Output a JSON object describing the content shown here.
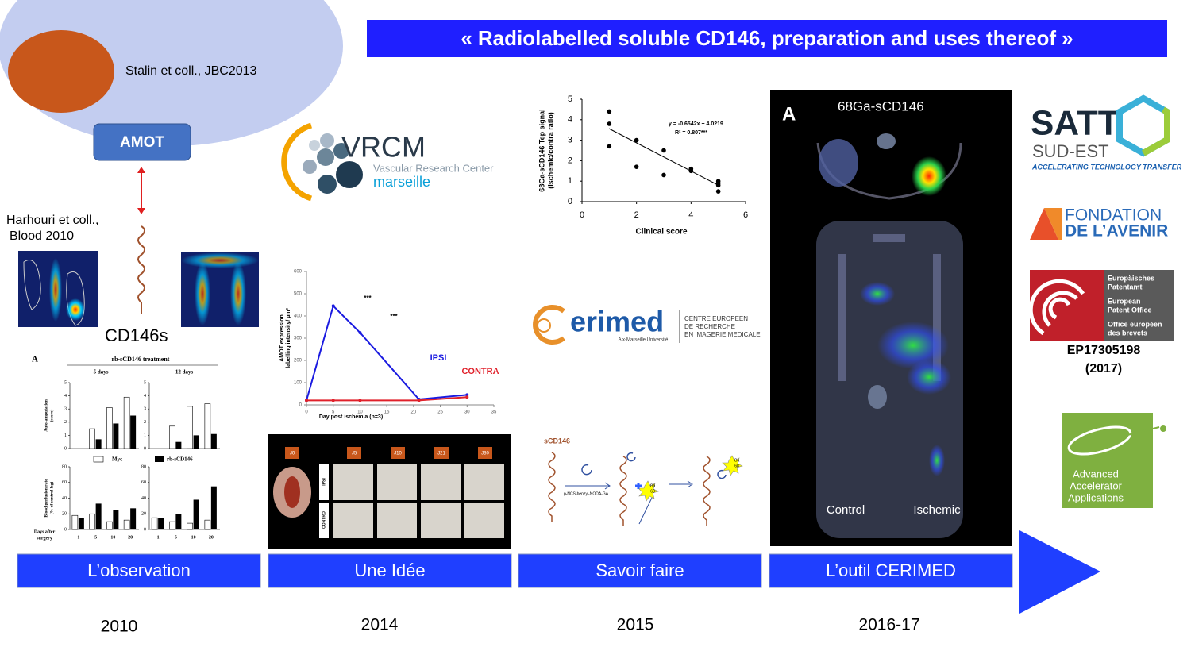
{
  "title": "« Radiolabelled soluble CD146,  preparation and uses thereof »",
  "stalin": "Stalin et coll.,  JBC2013",
  "amot": "AMOT",
  "harhouri": [
    "Harhouri et coll.,",
    "Blood 2010"
  ],
  "cd146s": "CD146s",
  "stages": [
    {
      "label": "L’observation",
      "year": "2010"
    },
    {
      "label": "Une Idée",
      "year": "2014"
    },
    {
      "label": "Savoir faire",
      "year": "2015"
    },
    {
      "label": "L’outil CERIMED",
      "year": "2016-17"
    }
  ],
  "bar_figure": {
    "panel": "A",
    "title": "rb-sCD146 treatment",
    "columns": [
      "5 days",
      "12 days"
    ],
    "legend": [
      "Myc",
      "rb-sCD146"
    ],
    "x_label": [
      "Days after",
      "surgery"
    ],
    "categories": [
      "1",
      "5",
      "10",
      "20"
    ],
    "rows": [
      {
        "y_label": [
          "Auto-amputation",
          "(score)"
        ],
        "ylim": [
          0,
          5
        ],
        "yticks": [
          0,
          1,
          2,
          3,
          4,
          5
        ],
        "charts": [
          {
            "myc": [
              0,
              1.5,
              3.1,
              3.9
            ],
            "rb": [
              0,
              0.7,
              1.9,
              2.5
            ]
          },
          {
            "myc": [
              0,
              1.7,
              3.2,
              3.4
            ],
            "rb": [
              0,
              0.5,
              1.0,
              1.1
            ]
          }
        ]
      },
      {
        "y_label": [
          "Blood perfusion rate",
          "(% of control leg)"
        ],
        "ylim": [
          0,
          80
        ],
        "yticks": [
          0,
          20,
          40,
          60,
          80
        ],
        "charts": [
          {
            "myc": [
              18,
              20,
              10,
              12
            ],
            "rb": [
              15,
              33,
              25,
              27
            ]
          },
          {
            "myc": [
              15,
              10,
              8,
              12
            ],
            "rb": [
              15,
              20,
              38,
              55
            ]
          }
        ]
      }
    ]
  },
  "amot_chart": {
    "type": "line",
    "y_label": [
      "AMOT expression",
      "labelling intensity/ µm²"
    ],
    "x_label": "Day post ischemia (n=3)",
    "x": [
      0,
      5,
      10,
      21,
      30
    ],
    "series": [
      {
        "name": "IPSI",
        "color": "#1a1ae0",
        "values": [
          20,
          445,
          325,
          25,
          45
        ]
      },
      {
        "name": "CONTRA",
        "color": "#e0202a",
        "values": [
          20,
          20,
          20,
          20,
          35
        ]
      }
    ],
    "xlim": [
      0,
      35
    ],
    "ylim": [
      0,
      600
    ],
    "xticks": [
      0,
      5,
      10,
      15,
      20,
      25,
      30,
      35
    ],
    "yticks": [
      0,
      100,
      200,
      300,
      400,
      500,
      600
    ],
    "annotations": [
      "***",
      "***"
    ]
  },
  "histology": {
    "days": [
      "J0",
      "J5",
      "J10",
      "J21",
      "J30"
    ],
    "rows": [
      "IPSI",
      "CONTRO"
    ]
  },
  "scatter": {
    "type": "scatter",
    "y_label": [
      "68Ga-sCD146 Tep signal",
      "(ischemic/contra ratio)"
    ],
    "x_label": "Clinical score",
    "equation": "y = -0.6542x + 4.0219",
    "r2": "R² = 0.807***",
    "x": [
      1,
      1,
      1,
      2,
      2,
      3,
      3,
      4,
      4,
      5,
      5,
      5,
      5
    ],
    "y": [
      4.4,
      3.8,
      2.7,
      3.0,
      1.7,
      2.5,
      1.3,
      1.6,
      1.5,
      1.0,
      0.9,
      0.8,
      0.5
    ],
    "xlim": [
      0,
      6
    ],
    "ylim": [
      0,
      5
    ],
    "xticks": [
      0,
      2,
      4,
      6
    ],
    "yticks": [
      0,
      1,
      2,
      3,
      4,
      5
    ]
  },
  "vrcm": {
    "name": "VRCM",
    "line1": "Vascular Research Center",
    "line2": "marseille"
  },
  "cerimed": {
    "name": "erimed",
    "univ": "Aix-Marseille Université",
    "lines": [
      "CENTRE EUROPEEN",
      "DE RECHERCHE",
      "EN IMAGERIE MEDICALE"
    ]
  },
  "reaction": {
    "protein": "sCD146",
    "reagent": "p-NCS-benzyl-NODA-GA",
    "ga": [
      "Ga",
      "68"
    ]
  },
  "pet": {
    "panel": "A",
    "tracer": "68Ga-sCD146",
    "labels": [
      "Control",
      "Ischemic"
    ]
  },
  "satt": {
    "name": "SATT",
    "sub": "SUD-EST",
    "tag": "ACCELERATING TECHNOLOGY TRANSFER"
  },
  "fondation": {
    "line1": "FONDATION",
    "line2": "DE L’AVENIR"
  },
  "epo": {
    "lines": [
      "Europäisches",
      "Patentamt",
      "European",
      "Patent Office",
      "Office européen",
      "des brevets"
    ],
    "number": "EP17305198",
    "year": "(2017)"
  },
  "aaa": {
    "lines": [
      "Advanced",
      "Accelerator",
      "Applications"
    ]
  }
}
